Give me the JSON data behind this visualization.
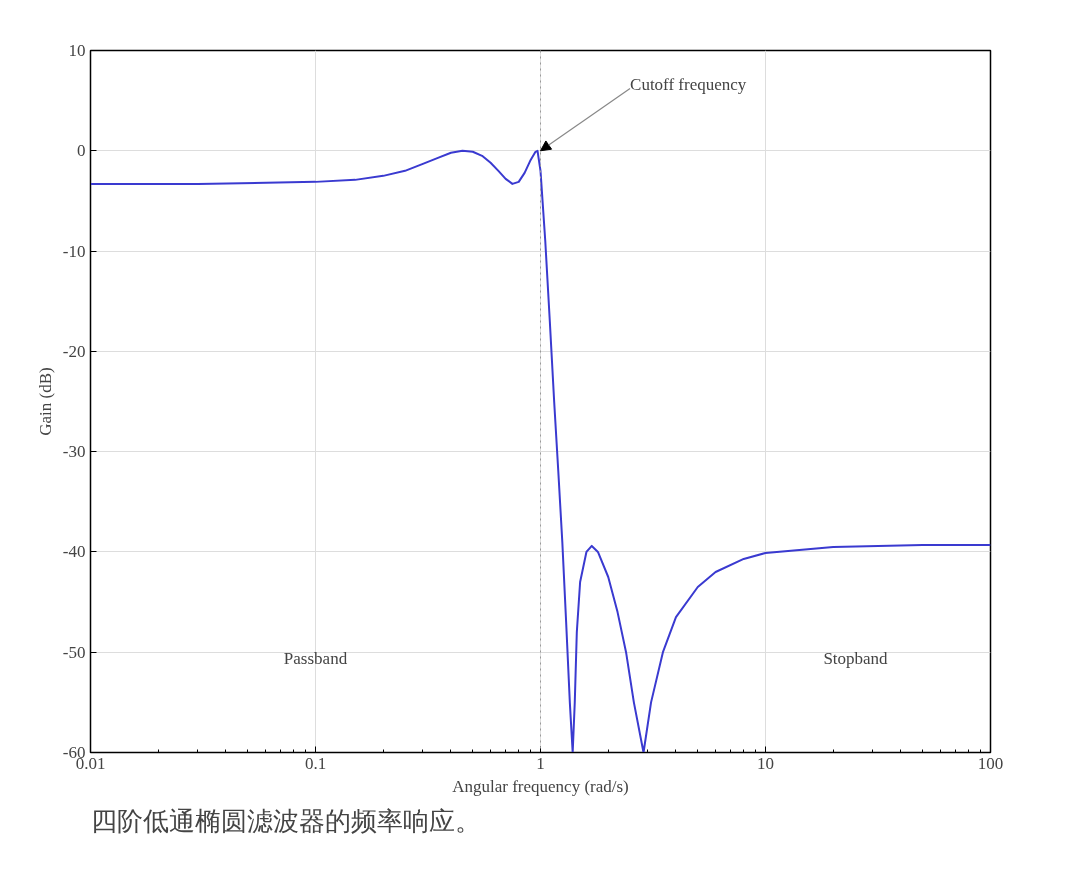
{
  "chart_data": {
    "type": "line",
    "xlabel": "Angular frequency (rad/s)",
    "ylabel": "Gain (dB)",
    "log": "x",
    "xlim": [
      0.01,
      100
    ],
    "xticks": [
      0.01,
      0.1,
      1,
      10,
      100
    ],
    "ylim": [
      -60,
      10
    ],
    "yticks": [
      -60,
      -50,
      -40,
      -30,
      -20,
      -10,
      0,
      10
    ],
    "grid": true,
    "line_style": "solid",
    "x": [
      0.01,
      0.03,
      0.1,
      0.15,
      0.2,
      0.25,
      0.3,
      0.35,
      0.4,
      0.45,
      0.5,
      0.55,
      0.6,
      0.65,
      0.7,
      0.75,
      0.8,
      0.85,
      0.9,
      0.95,
      0.97,
      1.0,
      1.05,
      1.1,
      1.15,
      1.2,
      1.25,
      1.3,
      1.35,
      1.39,
      1.42,
      1.45,
      1.5,
      1.6,
      1.69,
      1.8,
      2.0,
      2.2,
      2.4,
      2.6,
      2.87,
      3.1,
      3.5,
      4,
      5,
      6,
      8,
      10,
      20,
      50,
      100
    ],
    "series": [
      {
        "color": "#3a3ad0",
        "values": [
          -3.3,
          -3.3,
          -3.1,
          -2.9,
          -2.5,
          -2.0,
          -1.3,
          -0.7,
          -0.2,
          0,
          -0.1,
          -0.5,
          -1.2,
          -2.0,
          -2.8,
          -3.3,
          -3.1,
          -2.2,
          -1.0,
          -0.1,
          0,
          -2,
          -9,
          -17,
          -25,
          -32,
          -39,
          -47,
          -55,
          -60,
          -55,
          -48,
          -43,
          -40,
          -39.4,
          -40,
          -42.5,
          -46,
          -50,
          -55,
          -60,
          -55,
          -50,
          -46.5,
          -43.5,
          -42,
          -40.7,
          -40.1,
          -39.5,
          -39.3,
          -39.3
        ]
      }
    ],
    "ref_lines": [
      {
        "axis": "x",
        "value": 1,
        "color": "#999999",
        "line_style": "dotted"
      }
    ],
    "annotations": [
      {
        "text": "Cutoff frequency",
        "x": 1,
        "y": 0
      },
      "Passband",
      "Stopband",
      "四阶低通椭圆滤波器的频率响应。"
    ]
  }
}
